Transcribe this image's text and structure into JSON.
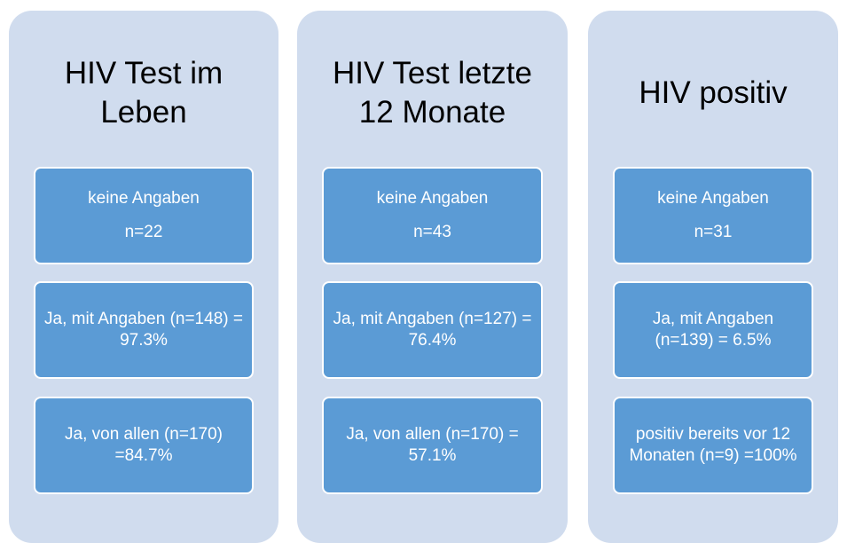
{
  "columns": [
    {
      "title": "HIV Test im Leben",
      "boxes": [
        [
          "keine Angaben",
          "n=22"
        ],
        [
          "Ja, mit Angaben (n=148) = 97.3%"
        ],
        [
          "Ja, von allen (n=170) =84.7%"
        ]
      ]
    },
    {
      "title": "HIV Test letzte 12 Monate",
      "boxes": [
        [
          "keine Angaben",
          "n=43"
        ],
        [
          "Ja, mit Angaben (n=127) = 76.4%"
        ],
        [
          "Ja, von allen (n=170) = 57.1%"
        ]
      ]
    },
    {
      "title": "HIV positiv",
      "boxes": [
        [
          "keine Angaben",
          "n=31"
        ],
        [
          "Ja, mit Angaben (n=139) = 6.5%"
        ],
        [
          "positiv bereits vor 12 Monaten (n=9) =100%"
        ]
      ]
    }
  ]
}
